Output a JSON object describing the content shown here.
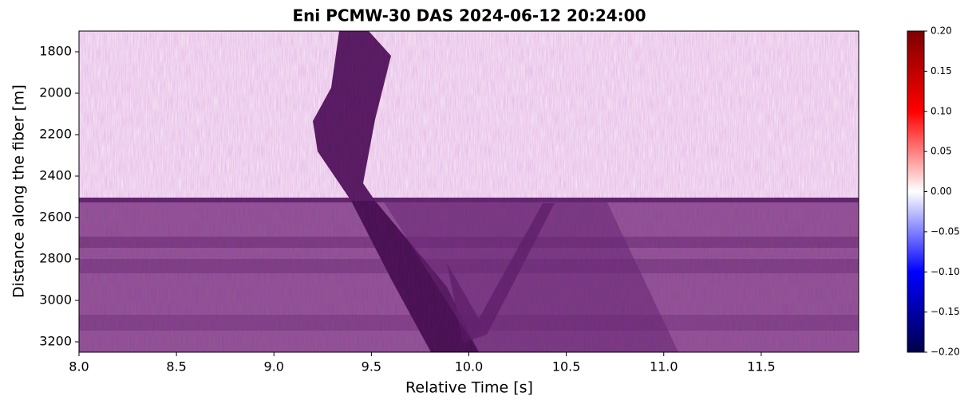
{
  "chart_data": {
    "type": "heatmap",
    "title": "Eni PCMW-30 DAS 2024-06-12 20:24:00",
    "x_label": "Relative Time [s]",
    "y_label": "Distance along the fiber [m]",
    "xlim": [
      8.0,
      12.0
    ],
    "xticks": [
      {
        "value": 8,
        "label": "8.0"
      },
      {
        "value": 8.5,
        "label": "8.5"
      },
      {
        "value": 9,
        "label": "9.0"
      },
      {
        "value": 9.5,
        "label": "9.5"
      },
      {
        "value": 10,
        "label": "10.0"
      },
      {
        "value": 10.5,
        "label": "10.5"
      },
      {
        "value": 11,
        "label": "11.0"
      },
      {
        "value": 11.5,
        "label": "11.5"
      }
    ],
    "ylim": [
      1700,
      3250
    ],
    "y_inverted": true,
    "yticks": [
      1800,
      2000,
      2200,
      2400,
      2600,
      2800,
      3000,
      3200
    ],
    "colormap": "seismic",
    "colorbar_lim": [
      -0.2,
      0.2
    ],
    "colorbar_ticks": [
      {
        "value": 0.2,
        "label": "0.20"
      },
      {
        "value": 0.15,
        "label": "0.15"
      },
      {
        "value": 0.1,
        "label": "0.10"
      },
      {
        "value": 0.05,
        "label": "0.05"
      },
      {
        "value": 0,
        "label": "0.00"
      },
      {
        "value": -0.05,
        "label": "−0.05"
      },
      {
        "value": -0.1,
        "label": "−0.10"
      },
      {
        "value": -0.15,
        "label": "−0.15"
      },
      {
        "value": -0.2,
        "label": "−0.20"
      }
    ]
  }
}
